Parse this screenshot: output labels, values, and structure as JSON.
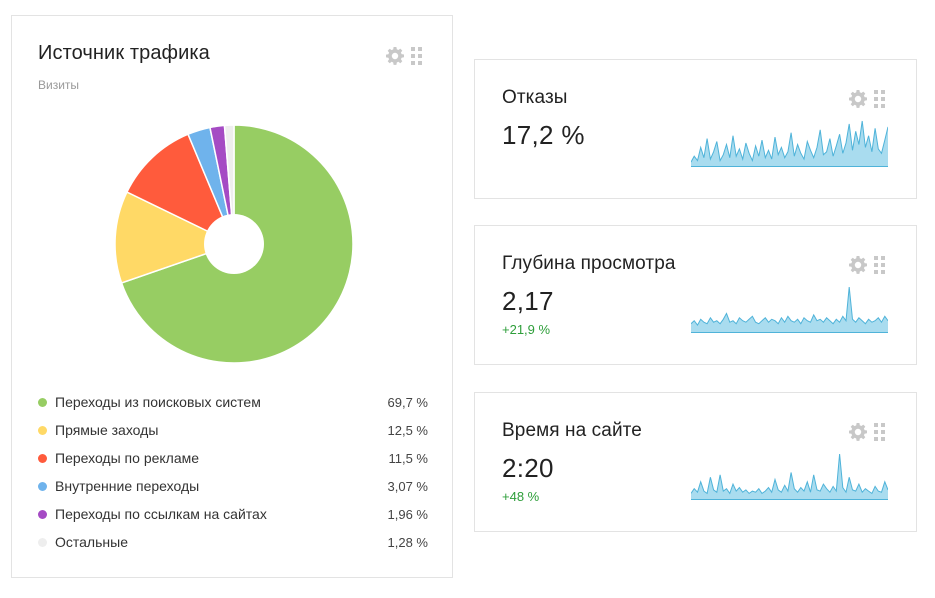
{
  "traffic": {
    "title": "Источник трафика",
    "subtitle": "Визиты",
    "legend": [
      {
        "label": "Переходы из поисковых систем",
        "pct": "69,7 %",
        "value": 69.7,
        "color": "#97cd63"
      },
      {
        "label": "Прямые заходы",
        "pct": "12,5 %",
        "value": 12.5,
        "color": "#ffd966"
      },
      {
        "label": "Переходы по рекламе",
        "pct": "11,5 %",
        "value": 11.5,
        "color": "#ff5b3c"
      },
      {
        "label": "Внутренние переходы",
        "pct": "3,07 %",
        "value": 3.07,
        "color": "#6fb3ec"
      },
      {
        "label": "Переходы по ссылкам на сайтах",
        "pct": "1,96 %",
        "value": 1.96,
        "color": "#a54bc4"
      },
      {
        "label": "Остальные",
        "pct": "1,28 %",
        "value": 1.28,
        "color": "#eeeeee"
      }
    ]
  },
  "metrics": [
    {
      "title": "Отказы",
      "value": "17,2 %",
      "delta": "",
      "spark": [
        2,
        6,
        3,
        12,
        5,
        18,
        4,
        9,
        16,
        3,
        7,
        14,
        5,
        20,
        6,
        11,
        4,
        15,
        8,
        3,
        13,
        6,
        17,
        5,
        10,
        4,
        19,
        7,
        12,
        5,
        9,
        22,
        6,
        14,
        8,
        4,
        16,
        10,
        5,
        12,
        24,
        7,
        9,
        18,
        6,
        13,
        21,
        8,
        15,
        28,
        10,
        23,
        14,
        30,
        12,
        20,
        9,
        25,
        11,
        8,
        17,
        26
      ]
    },
    {
      "title": "Глубина просмотра",
      "value": "2,17",
      "delta": "+21,9 %",
      "spark": [
        5,
        7,
        4,
        8,
        6,
        5,
        9,
        6,
        7,
        5,
        8,
        12,
        6,
        7,
        5,
        9,
        7,
        6,
        8,
        10,
        6,
        5,
        7,
        9,
        6,
        8,
        7,
        5,
        9,
        6,
        10,
        7,
        6,
        8,
        5,
        9,
        7,
        6,
        11,
        7,
        8,
        6,
        9,
        7,
        5,
        8,
        6,
        10,
        7,
        30,
        8,
        6,
        9,
        7,
        5,
        8,
        6,
        7,
        9,
        6,
        10,
        7
      ]
    },
    {
      "title": "Время на сайте",
      "value": "2:20",
      "delta": "+48 %",
      "spark": [
        4,
        8,
        5,
        14,
        6,
        4,
        18,
        7,
        5,
        20,
        6,
        8,
        4,
        12,
        6,
        9,
        5,
        7,
        4,
        6,
        5,
        8,
        4,
        6,
        9,
        5,
        16,
        7,
        5,
        11,
        6,
        22,
        8,
        5,
        9,
        6,
        14,
        5,
        20,
        7,
        6,
        12,
        8,
        5,
        10,
        6,
        38,
        9,
        5,
        18,
        7,
        6,
        12,
        5,
        8,
        6,
        4,
        10,
        6,
        5,
        14,
        7
      ]
    }
  ],
  "icons": {
    "settings": "gear-icon",
    "drag": "drag-handle-icon"
  },
  "colors": {
    "spark_line": "#4fb3d9",
    "spark_fill": "#a9dcef",
    "delta_positive": "#2e9e3a"
  }
}
